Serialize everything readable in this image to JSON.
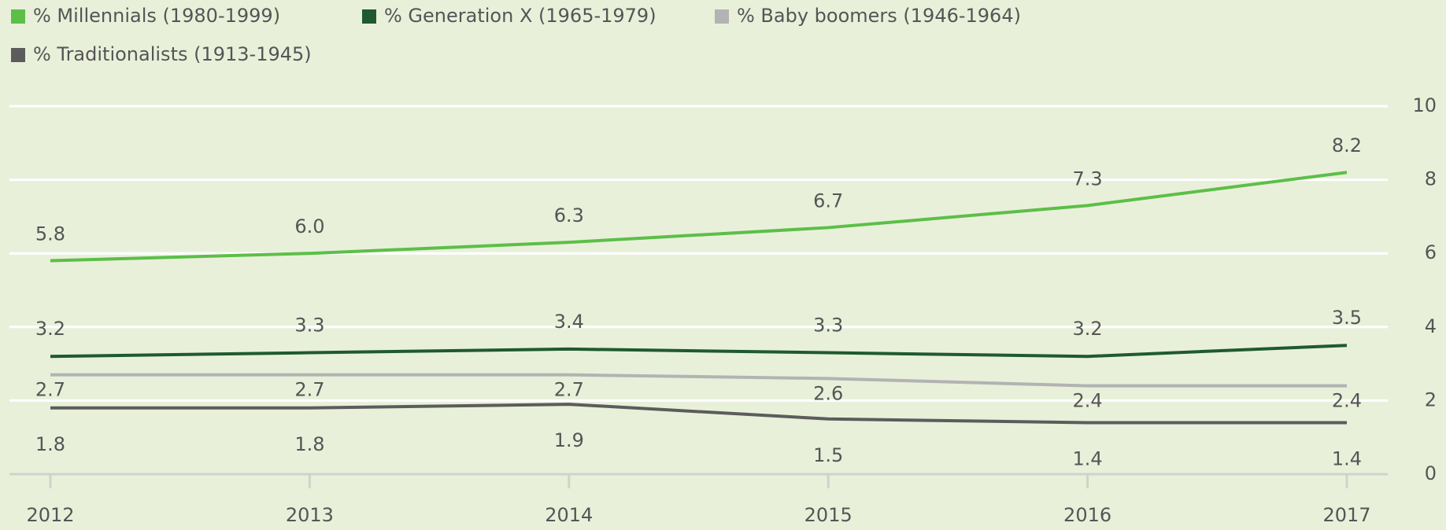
{
  "chart_data": {
    "type": "line",
    "categories": [
      "2012",
      "2013",
      "2014",
      "2015",
      "2016",
      "2017"
    ],
    "series": [
      {
        "name": "% Millennials (1980-1999)",
        "color": "#5cbf48",
        "values": [
          5.8,
          6.0,
          6.3,
          6.7,
          7.3,
          8.2
        ],
        "value_labels": [
          "5.8",
          "6.0",
          "6.3",
          "6.7",
          "7.3",
          "8.2"
        ]
      },
      {
        "name": "% Generation X (1965-1979)",
        "color": "#1f5a2e",
        "values": [
          3.2,
          3.3,
          3.4,
          3.3,
          3.2,
          3.5
        ],
        "value_labels": [
          "3.2",
          "3.3",
          "3.4",
          "3.3",
          "3.2",
          "3.5"
        ]
      },
      {
        "name": "% Baby boomers (1946-1964)",
        "color": "#b3b3b3",
        "values": [
          2.7,
          2.7,
          2.7,
          2.6,
          2.4,
          2.4
        ],
        "value_labels": [
          "2.7",
          "2.7",
          "2.7",
          "2.6",
          "2.4",
          "2.4"
        ]
      },
      {
        "name": "% Traditionalists (1913-1945)",
        "color": "#5c5c5c",
        "values": [
          1.8,
          1.8,
          1.9,
          1.5,
          1.4,
          1.4
        ],
        "value_labels": [
          "1.8",
          "1.8",
          "1.9",
          "1.5",
          "1.4",
          "1.4"
        ]
      }
    ],
    "ylim": [
      0,
      10
    ],
    "yticks": [
      0,
      2,
      4,
      6,
      8,
      10
    ],
    "grid": true
  }
}
